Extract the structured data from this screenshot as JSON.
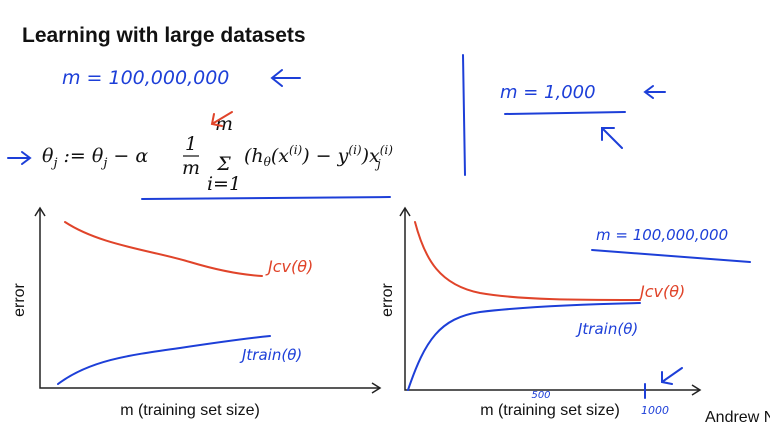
{
  "title": "Learning with large datasets",
  "annotations": {
    "m_large": "m = 100,000,000",
    "m_small": "m = 1,000",
    "m_right": "m = 100,000,000"
  },
  "formula": {
    "lhs": [
      "θ",
      "j",
      " := θ",
      "j",
      " − α"
    ],
    "numerator": "1",
    "denominator": "m",
    "sigma": "Σ",
    "upper": "m",
    "lower": "i=1",
    "body": [
      "(h",
      "θ",
      "(x",
      "(i)",
      ") − y",
      "(i)",
      ")x",
      "(i)",
      "j"
    ]
  },
  "plots": [
    {
      "y_label": "error",
      "x_label": "m  (training set size)",
      "cv_label": "Jcv(θ)",
      "train_label": "Jtrain(θ)"
    },
    {
      "y_label": "error",
      "x_label": "m  (training set size)",
      "cv_label": "Jcv(θ)",
      "train_label": "Jtrain(θ)",
      "tick_mid": "500",
      "tick_end": "1000"
    }
  ],
  "footer": "Andrew Ng"
}
